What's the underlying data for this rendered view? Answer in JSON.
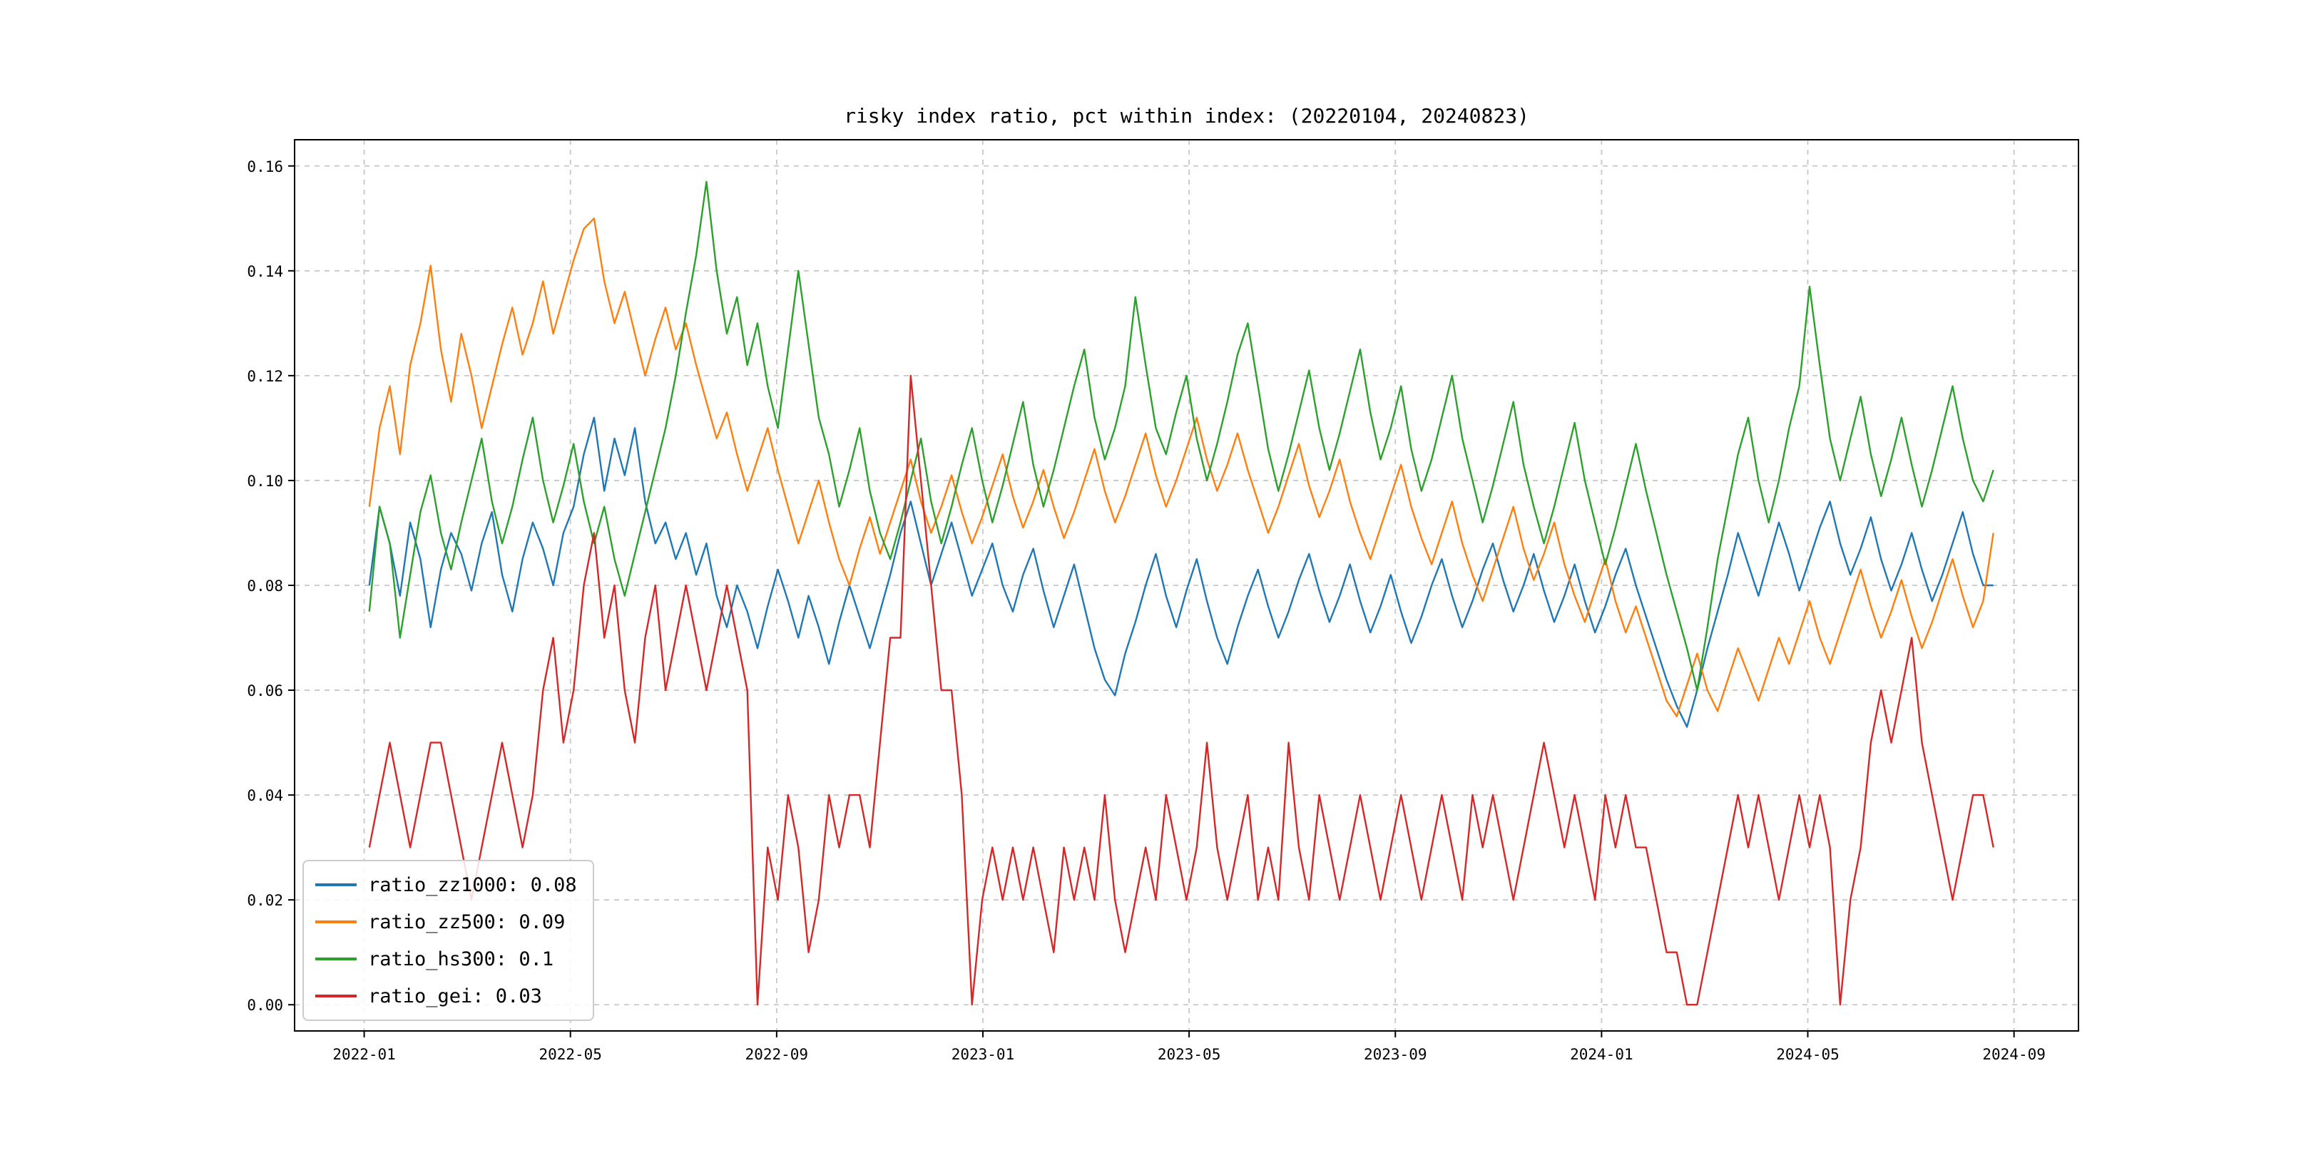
{
  "chart_data": {
    "type": "line",
    "title": "risky index ratio, pct within index: (20220104, 20240823)",
    "xlabel": "",
    "ylabel": "",
    "grid": true,
    "legend_position": "lower left",
    "xlim_months": [
      -1.35,
      33.25
    ],
    "ylim": [
      -0.005,
      0.165
    ],
    "x_data_start_month": 0.1,
    "x_data_end_month": 31.6,
    "x_ticks": [
      {
        "pos": 0,
        "label": "2022-01"
      },
      {
        "pos": 4,
        "label": "2022-05"
      },
      {
        "pos": 8,
        "label": "2022-09"
      },
      {
        "pos": 12,
        "label": "2023-01"
      },
      {
        "pos": 16,
        "label": "2023-05"
      },
      {
        "pos": 20,
        "label": "2023-09"
      },
      {
        "pos": 24,
        "label": "2024-01"
      },
      {
        "pos": 28,
        "label": "2024-05"
      },
      {
        "pos": 32,
        "label": "2024-09"
      }
    ],
    "y_ticks": [
      {
        "pos": 0.0,
        "label": "0.00"
      },
      {
        "pos": 0.02,
        "label": "0.02"
      },
      {
        "pos": 0.04,
        "label": "0.04"
      },
      {
        "pos": 0.06,
        "label": "0.06"
      },
      {
        "pos": 0.08,
        "label": "0.08"
      },
      {
        "pos": 0.1,
        "label": "0.10"
      },
      {
        "pos": 0.12,
        "label": "0.12"
      },
      {
        "pos": 0.14,
        "label": "0.14"
      },
      {
        "pos": 0.16,
        "label": "0.16"
      }
    ],
    "series": [
      {
        "name": "ratio_zz1000",
        "legend_label": "ratio_zz1000: 0.08",
        "color": "#1f77b4",
        "values": [
          0.08,
          0.095,
          0.088,
          0.078,
          0.092,
          0.085,
          0.072,
          0.083,
          0.09,
          0.086,
          0.079,
          0.088,
          0.094,
          0.082,
          0.075,
          0.085,
          0.092,
          0.087,
          0.08,
          0.09,
          0.095,
          0.105,
          0.112,
          0.098,
          0.108,
          0.101,
          0.11,
          0.096,
          0.088,
          0.092,
          0.085,
          0.09,
          0.082,
          0.088,
          0.078,
          0.072,
          0.08,
          0.075,
          0.068,
          0.076,
          0.083,
          0.077,
          0.07,
          0.078,
          0.072,
          0.065,
          0.073,
          0.08,
          0.074,
          0.068,
          0.075,
          0.082,
          0.09,
          0.096,
          0.088,
          0.08,
          0.086,
          0.092,
          0.085,
          0.078,
          0.083,
          0.088,
          0.08,
          0.075,
          0.082,
          0.087,
          0.079,
          0.072,
          0.078,
          0.084,
          0.076,
          0.068,
          0.062,
          0.059,
          0.067,
          0.073,
          0.08,
          0.086,
          0.078,
          0.072,
          0.079,
          0.085,
          0.077,
          0.07,
          0.065,
          0.072,
          0.078,
          0.083,
          0.076,
          0.07,
          0.075,
          0.081,
          0.086,
          0.079,
          0.073,
          0.078,
          0.084,
          0.077,
          0.071,
          0.076,
          0.082,
          0.075,
          0.069,
          0.074,
          0.08,
          0.085,
          0.078,
          0.072,
          0.077,
          0.083,
          0.088,
          0.081,
          0.075,
          0.08,
          0.086,
          0.079,
          0.073,
          0.078,
          0.084,
          0.077,
          0.071,
          0.076,
          0.082,
          0.087,
          0.08,
          0.074,
          0.068,
          0.062,
          0.057,
          0.053,
          0.06,
          0.068,
          0.075,
          0.082,
          0.09,
          0.084,
          0.078,
          0.085,
          0.092,
          0.086,
          0.079,
          0.085,
          0.091,
          0.096,
          0.088,
          0.082,
          0.087,
          0.093,
          0.085,
          0.079,
          0.084,
          0.09,
          0.083,
          0.077,
          0.082,
          0.088,
          0.094,
          0.086,
          0.08,
          0.08
        ]
      },
      {
        "name": "ratio_zz500",
        "legend_label": "ratio_zz500: 0.09",
        "color": "#ff7f0e",
        "values": [
          0.095,
          0.11,
          0.118,
          0.105,
          0.122,
          0.13,
          0.141,
          0.125,
          0.115,
          0.128,
          0.12,
          0.11,
          0.118,
          0.126,
          0.133,
          0.124,
          0.13,
          0.138,
          0.128,
          0.135,
          0.142,
          0.148,
          0.15,
          0.138,
          0.13,
          0.136,
          0.128,
          0.12,
          0.127,
          0.133,
          0.125,
          0.13,
          0.122,
          0.115,
          0.108,
          0.113,
          0.105,
          0.098,
          0.104,
          0.11,
          0.102,
          0.095,
          0.088,
          0.094,
          0.1,
          0.092,
          0.085,
          0.08,
          0.087,
          0.093,
          0.086,
          0.092,
          0.098,
          0.104,
          0.096,
          0.09,
          0.095,
          0.101,
          0.094,
          0.088,
          0.093,
          0.099,
          0.105,
          0.097,
          0.091,
          0.096,
          0.102,
          0.095,
          0.089,
          0.094,
          0.1,
          0.106,
          0.098,
          0.092,
          0.097,
          0.103,
          0.109,
          0.101,
          0.095,
          0.1,
          0.106,
          0.112,
          0.104,
          0.098,
          0.103,
          0.109,
          0.102,
          0.096,
          0.09,
          0.095,
          0.101,
          0.107,
          0.099,
          0.093,
          0.098,
          0.104,
          0.096,
          0.09,
          0.085,
          0.091,
          0.097,
          0.103,
          0.095,
          0.089,
          0.084,
          0.09,
          0.096,
          0.088,
          0.082,
          0.077,
          0.083,
          0.089,
          0.095,
          0.087,
          0.081,
          0.086,
          0.092,
          0.084,
          0.078,
          0.073,
          0.079,
          0.085,
          0.077,
          0.071,
          0.076,
          0.07,
          0.064,
          0.058,
          0.055,
          0.061,
          0.067,
          0.06,
          0.056,
          0.062,
          0.068,
          0.063,
          0.058,
          0.064,
          0.07,
          0.065,
          0.071,
          0.077,
          0.07,
          0.065,
          0.071,
          0.077,
          0.083,
          0.076,
          0.07,
          0.075,
          0.081,
          0.074,
          0.068,
          0.073,
          0.079,
          0.085,
          0.078,
          0.072,
          0.077,
          0.09
        ]
      },
      {
        "name": "ratio_hs300",
        "legend_label": "ratio_hs300: 0.1",
        "color": "#2ca02c",
        "values": [
          0.075,
          0.095,
          0.088,
          0.07,
          0.082,
          0.094,
          0.101,
          0.09,
          0.083,
          0.092,
          0.1,
          0.108,
          0.096,
          0.088,
          0.095,
          0.104,
          0.112,
          0.1,
          0.092,
          0.099,
          0.107,
          0.096,
          0.088,
          0.095,
          0.085,
          0.078,
          0.086,
          0.094,
          0.102,
          0.11,
          0.12,
          0.132,
          0.143,
          0.157,
          0.14,
          0.128,
          0.135,
          0.122,
          0.13,
          0.118,
          0.11,
          0.125,
          0.14,
          0.126,
          0.112,
          0.105,
          0.095,
          0.102,
          0.11,
          0.098,
          0.09,
          0.085,
          0.092,
          0.1,
          0.108,
          0.096,
          0.088,
          0.095,
          0.103,
          0.11,
          0.1,
          0.092,
          0.099,
          0.107,
          0.115,
          0.103,
          0.095,
          0.102,
          0.11,
          0.118,
          0.125,
          0.112,
          0.104,
          0.11,
          0.118,
          0.135,
          0.122,
          0.11,
          0.105,
          0.113,
          0.12,
          0.108,
          0.1,
          0.107,
          0.115,
          0.124,
          0.13,
          0.118,
          0.106,
          0.098,
          0.105,
          0.113,
          0.121,
          0.11,
          0.102,
          0.109,
          0.117,
          0.125,
          0.113,
          0.104,
          0.11,
          0.118,
          0.106,
          0.098,
          0.104,
          0.112,
          0.12,
          0.108,
          0.1,
          0.092,
          0.099,
          0.107,
          0.115,
          0.103,
          0.095,
          0.088,
          0.095,
          0.103,
          0.111,
          0.1,
          0.092,
          0.084,
          0.091,
          0.099,
          0.107,
          0.098,
          0.09,
          0.082,
          0.075,
          0.068,
          0.06,
          0.072,
          0.085,
          0.095,
          0.105,
          0.112,
          0.1,
          0.092,
          0.1,
          0.11,
          0.118,
          0.137,
          0.122,
          0.108,
          0.1,
          0.108,
          0.116,
          0.105,
          0.097,
          0.104,
          0.112,
          0.103,
          0.095,
          0.102,
          0.11,
          0.118,
          0.108,
          0.1,
          0.096,
          0.102
        ]
      },
      {
        "name": "ratio_gei",
        "legend_label": "ratio_gei: 0.03",
        "color": "#d62728",
        "values": [
          0.03,
          0.04,
          0.05,
          0.04,
          0.03,
          0.04,
          0.05,
          0.05,
          0.04,
          0.03,
          0.02,
          0.03,
          0.04,
          0.05,
          0.04,
          0.03,
          0.04,
          0.06,
          0.07,
          0.05,
          0.06,
          0.08,
          0.09,
          0.07,
          0.08,
          0.06,
          0.05,
          0.07,
          0.08,
          0.06,
          0.07,
          0.08,
          0.07,
          0.06,
          0.07,
          0.08,
          0.07,
          0.06,
          0.0,
          0.03,
          0.02,
          0.04,
          0.03,
          0.01,
          0.02,
          0.04,
          0.03,
          0.04,
          0.04,
          0.03,
          0.05,
          0.07,
          0.07,
          0.12,
          0.1,
          0.08,
          0.06,
          0.06,
          0.04,
          0.0,
          0.02,
          0.03,
          0.02,
          0.03,
          0.02,
          0.03,
          0.02,
          0.01,
          0.03,
          0.02,
          0.03,
          0.02,
          0.04,
          0.02,
          0.01,
          0.02,
          0.03,
          0.02,
          0.04,
          0.03,
          0.02,
          0.03,
          0.05,
          0.03,
          0.02,
          0.03,
          0.04,
          0.02,
          0.03,
          0.02,
          0.05,
          0.03,
          0.02,
          0.04,
          0.03,
          0.02,
          0.03,
          0.04,
          0.03,
          0.02,
          0.03,
          0.04,
          0.03,
          0.02,
          0.03,
          0.04,
          0.03,
          0.02,
          0.04,
          0.03,
          0.04,
          0.03,
          0.02,
          0.03,
          0.04,
          0.05,
          0.04,
          0.03,
          0.04,
          0.03,
          0.02,
          0.04,
          0.03,
          0.04,
          0.03,
          0.03,
          0.02,
          0.01,
          0.01,
          0.0,
          0.0,
          0.01,
          0.02,
          0.03,
          0.04,
          0.03,
          0.04,
          0.03,
          0.02,
          0.03,
          0.04,
          0.03,
          0.04,
          0.03,
          0.0,
          0.02,
          0.03,
          0.05,
          0.06,
          0.05,
          0.06,
          0.07,
          0.05,
          0.04,
          0.03,
          0.02,
          0.03,
          0.04,
          0.04,
          0.03
        ]
      }
    ]
  }
}
